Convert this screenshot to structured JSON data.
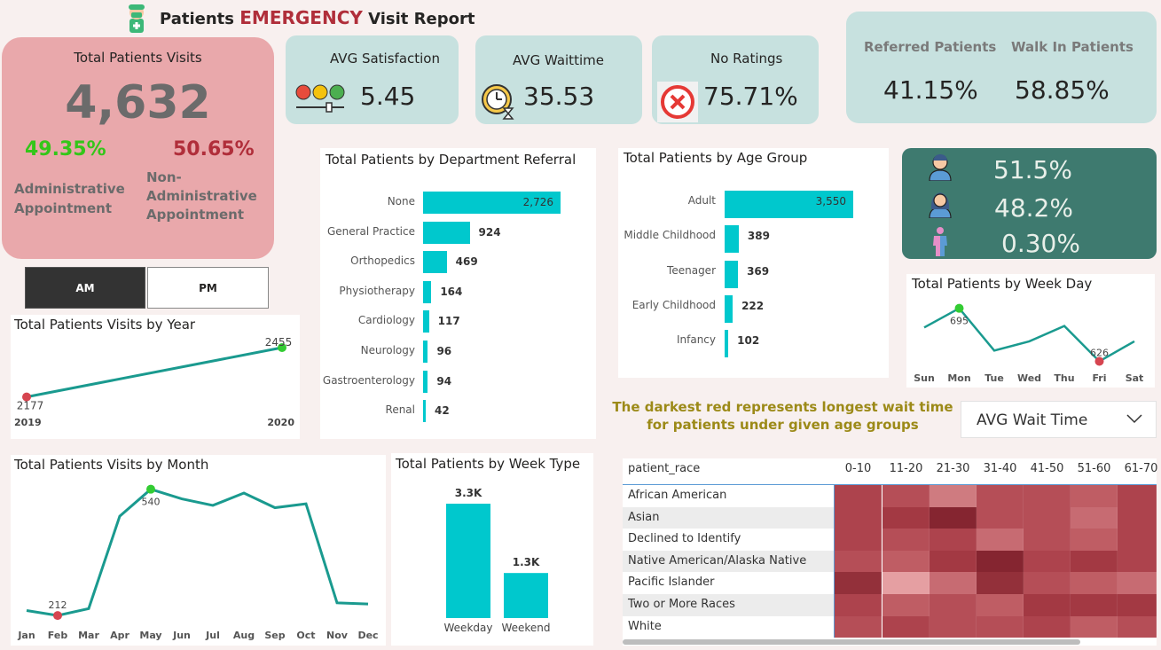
{
  "header": {
    "title_prefix": "Patients ",
    "title_highlight": "EMERGENCY",
    "title_suffix": " Visit Report"
  },
  "total_visits": {
    "label": "Total Patients Visits",
    "value": "4,632",
    "admin_pct": "49.35%",
    "nonadmin_pct": "50.65%",
    "admin_label": "Administrative Appointment",
    "nonadmin_label": "Non-Administrative Appointment",
    "colors": {
      "card": "#e9a8ab",
      "green": "#34c619",
      "red": "#b02e3a"
    }
  },
  "kpis": {
    "satisfaction": {
      "label": "AVG Satisfaction",
      "value": "5.45"
    },
    "waittime": {
      "label": "AVG Waittime",
      "value": "35.53"
    },
    "noratings": {
      "label": "No Ratings",
      "value": "75.71%"
    }
  },
  "referral": {
    "referred_label": "Referred Patients",
    "referred_value": "41.15%",
    "walkin_label": "Walk In Patients",
    "walkin_value": "58.85%"
  },
  "gender": {
    "male": "51.5%",
    "female": "48.2%",
    "other": "0.30%"
  },
  "toggle": {
    "am": "AM",
    "pm": "PM"
  },
  "note": "The darkest red represents longest wait time for patients under given age groups",
  "dropdown": {
    "value": "AVG Wait Time"
  },
  "chart_data": [
    {
      "id": "by_year",
      "type": "line",
      "title": "Total Patients Visits by Year",
      "x": [
        "2019",
        "2020"
      ],
      "values": [
        2177,
        2455
      ],
      "colors": {
        "line": "#1a9a8f",
        "max": "#33cc33",
        "min": "#d64550"
      }
    },
    {
      "id": "by_department",
      "type": "bar",
      "title": "Total Patients by Department Referral",
      "categories": [
        "None",
        "General Practice",
        "Orthopedics",
        "Physiotherapy",
        "Cardiology",
        "Neurology",
        "Gastroenterology",
        "Renal"
      ],
      "values": [
        2726,
        924,
        469,
        164,
        117,
        96,
        94,
        42
      ],
      "labels": [
        "2,726",
        "924",
        "469",
        "164",
        "117",
        "96",
        "94",
        "42"
      ],
      "colors": {
        "bar": "#00c8cd"
      }
    },
    {
      "id": "by_age_group",
      "type": "bar",
      "title": "Total Patients by Age Group",
      "categories": [
        "Adult",
        "Middle Childhood",
        "Teenager",
        "Early Childhood",
        "Infancy"
      ],
      "values": [
        3550,
        389,
        369,
        222,
        102
      ],
      "labels": [
        "3,550",
        "389",
        "369",
        "222",
        "102"
      ],
      "colors": {
        "bar": "#00c8cd"
      }
    },
    {
      "id": "by_weekday",
      "type": "line",
      "title": "Total Patients by Week Day",
      "x": [
        "Sun",
        "Mon",
        "Tue",
        "Wed",
        "Thu",
        "Fri",
        "Sat"
      ],
      "values": [
        670,
        695,
        640,
        652,
        672,
        626,
        652
      ],
      "point_labels": {
        "1": "695",
        "5": "626"
      }
    },
    {
      "id": "by_month",
      "type": "line",
      "title": "Total Patients Visits by Month",
      "x": [
        "Jan",
        "Feb",
        "Mar",
        "Apr",
        "May",
        "Jun",
        "Jul",
        "Aug",
        "Sep",
        "Oct",
        "Nov",
        "Dec"
      ],
      "values": [
        225,
        212,
        230,
        470,
        540,
        515,
        498,
        530,
        492,
        502,
        245,
        242
      ],
      "point_labels": {
        "1": "212",
        "4": "540"
      }
    },
    {
      "id": "by_week_type",
      "type": "bar",
      "title": "Total Patients by Week Type",
      "categories": [
        "Weekday",
        "Weekend"
      ],
      "values": [
        3300,
        1300
      ],
      "labels": [
        "3.3K",
        "1.3K"
      ]
    },
    {
      "id": "heatmap",
      "type": "heatmap",
      "row_header": "patient_race",
      "columns": [
        "0-10",
        "11-20",
        "21-30",
        "31-40",
        "41-50",
        "51-60",
        "61-70"
      ],
      "rows": [
        "African American",
        "Asian",
        "Declined to Identify",
        "Native American/Alaska Native",
        "Pacific Islander",
        "Two or More Races",
        "White"
      ],
      "values": [
        [
          3,
          4,
          7,
          4,
          4,
          5,
          3
        ],
        [
          3,
          2,
          0,
          4,
          4,
          6,
          3
        ],
        [
          3,
          4,
          3,
          6,
          4,
          5,
          3
        ],
        [
          4,
          5,
          2,
          0,
          3,
          2,
          3
        ],
        [
          1,
          8,
          6,
          1,
          4,
          5,
          6
        ],
        [
          3,
          5,
          4,
          5,
          2,
          2,
          2
        ],
        [
          4,
          3,
          4,
          4,
          3,
          5,
          4
        ]
      ]
    }
  ]
}
